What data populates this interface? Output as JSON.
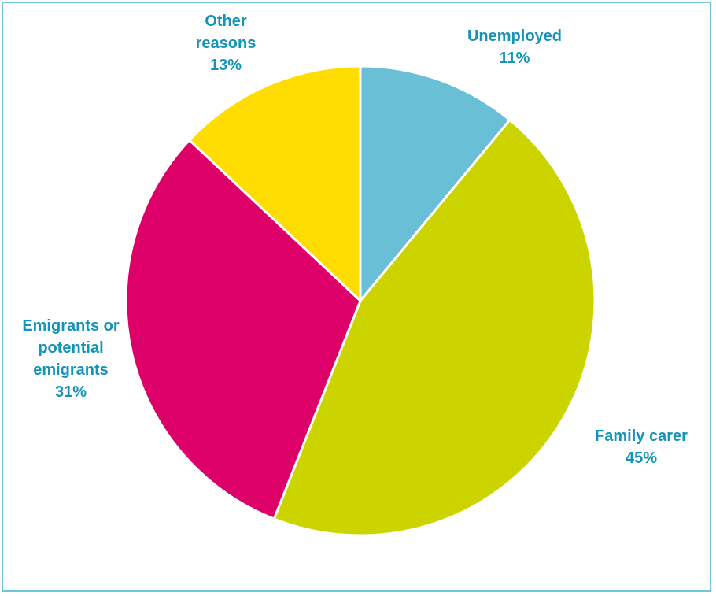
{
  "chart_data": {
    "type": "pie",
    "title": "",
    "slices": [
      {
        "label_lines": [
          "Unemployed"
        ],
        "pct_label": "11%",
        "value": 11,
        "color": "#69bfd6"
      },
      {
        "label_lines": [
          "Family carer"
        ],
        "pct_label": "45%",
        "value": 45,
        "color": "#ccd400"
      },
      {
        "label_lines": [
          "Emigrants or",
          "potential",
          "emigrants"
        ],
        "pct_label": "31%",
        "value": 31,
        "color": "#dd0069"
      },
      {
        "label_lines": [
          "Other",
          "reasons"
        ],
        "pct_label": "13%",
        "value": 13,
        "color": "#ffdd00"
      }
    ],
    "label_color": "#1494b8",
    "slice_border_color": "#ffffff",
    "frame_color": "#6fc6d9"
  }
}
